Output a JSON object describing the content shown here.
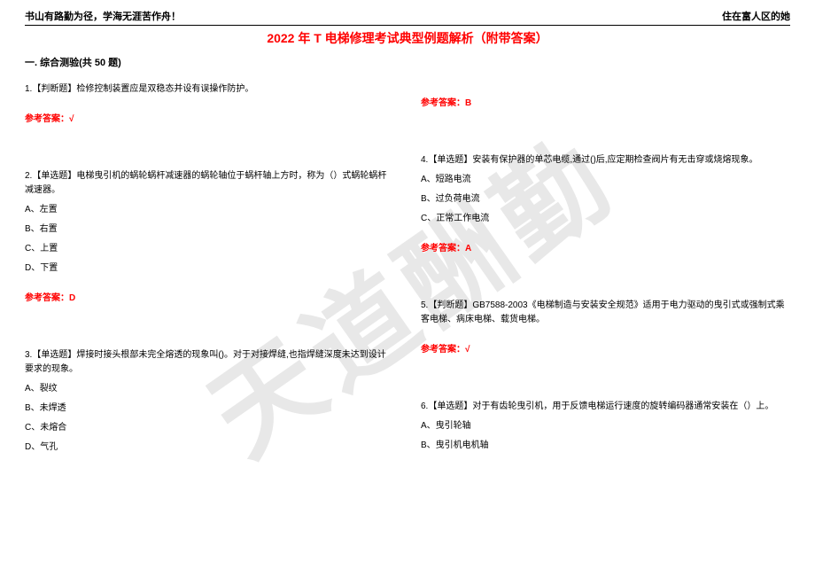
{
  "header": {
    "left": "书山有路勤为径，学海无涯苦作舟！",
    "right": "住在富人区的她"
  },
  "title": "2022 年 T 电梯修理考试典型例题解析（附带答案）",
  "watermark": "天道酬勤",
  "section_title": "一. 综合测验(共 50 题)",
  "left_col": {
    "q1": {
      "text": "1.【判断题】检修控制装置应是双稳态并设有误操作防护。",
      "answer": "参考答案：√"
    },
    "q2": {
      "text": "2.【单选题】电梯曳引机的蜗轮蜗杆减速器的蜗轮轴位于蜗杆轴上方时，称为（）式蜗轮蜗杆减速器。",
      "a": "A、左置",
      "b": "B、右置",
      "c": "C、上置",
      "d": "D、下置",
      "answer": "参考答案：D"
    },
    "q3": {
      "text": "3.【单选题】焊接时接头根部未完全熔透的现象叫()。对于对接焊缝,也指焊缝深度未达到设计要求的现象。",
      "a": "A、裂纹",
      "b": "B、未焊透",
      "c": "C、未熔合",
      "d": "D、气孔"
    }
  },
  "right_col": {
    "ans_prev": "参考答案：B",
    "q4": {
      "text": "4.【单选题】安装有保护器的单芯电缆,通过()后,应定期检查阀片有无击穿或烧熔现象。",
      "a": "A、短路电流",
      "b": "B、过负荷电流",
      "c": "C、正常工作电流",
      "answer": "参考答案：A"
    },
    "q5": {
      "text": "5.【判断题】GB7588-2003《电梯制造与安装安全规范》适用于电力驱动的曳引式或强制式乘客电梯、病床电梯、载货电梯。",
      "answer": "参考答案：√"
    },
    "q6": {
      "text": "6.【单选题】对于有齿轮曳引机，用于反馈电梯运行速度的旋转编码器通常安装在（）上。",
      "a": "A、曳引轮轴",
      "b": "B、曳引机电机轴"
    }
  }
}
